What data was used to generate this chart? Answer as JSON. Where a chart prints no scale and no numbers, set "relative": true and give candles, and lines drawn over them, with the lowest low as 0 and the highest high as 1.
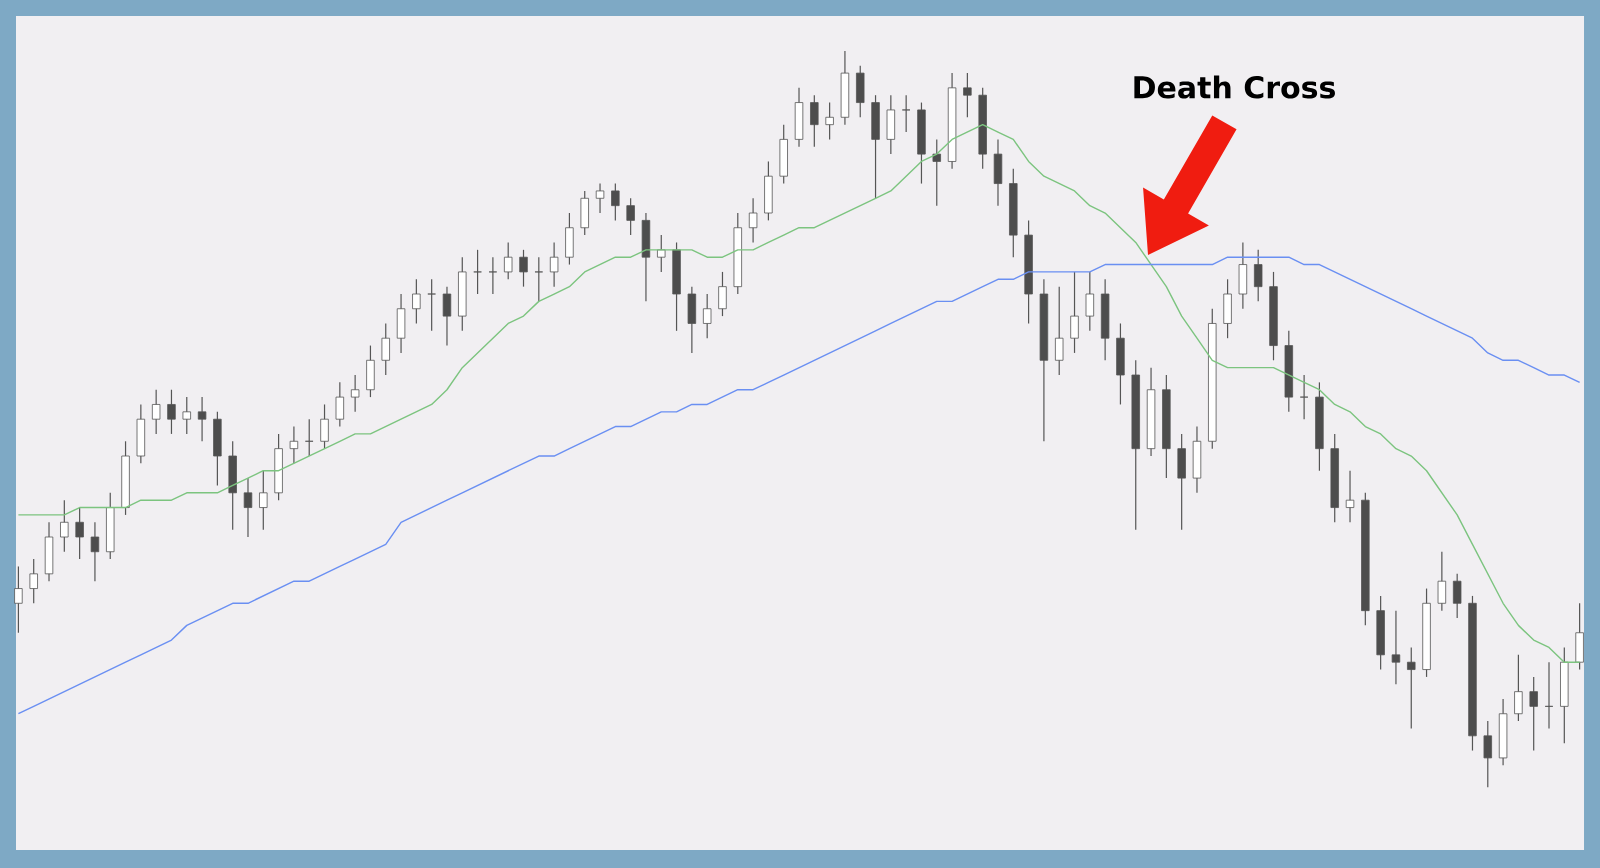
{
  "chart_data": {
    "type": "candlestick",
    "relative": true,
    "categories": [
      null,
      null,
      null,
      null,
      null,
      null,
      null,
      null,
      null,
      null,
      null,
      null,
      null,
      null,
      null,
      null,
      null,
      null,
      null,
      null,
      null,
      null,
      null,
      null,
      null,
      null,
      null,
      null,
      null,
      null,
      null,
      null,
      null,
      null,
      null,
      null,
      null,
      null,
      null,
      null,
      null,
      null,
      null,
      null,
      null,
      null,
      null,
      null,
      null,
      null,
      null,
      null,
      null,
      null,
      null,
      null,
      null,
      null,
      null,
      null,
      null,
      null,
      null,
      null,
      null,
      null,
      null,
      null,
      null,
      null,
      null,
      null,
      null,
      null,
      null,
      null,
      null,
      null,
      null,
      null,
      null,
      null,
      null,
      null,
      null,
      null,
      null,
      null,
      null,
      null,
      null,
      null,
      null,
      null,
      null,
      null,
      null,
      null,
      null,
      null,
      null,
      null,
      null
    ],
    "ohlc": [
      [
        0.25,
        0.3,
        0.21,
        0.27
      ],
      [
        0.27,
        0.31,
        0.25,
        0.29
      ],
      [
        0.29,
        0.36,
        0.28,
        0.34
      ],
      [
        0.34,
        0.39,
        0.32,
        0.36
      ],
      [
        0.36,
        0.38,
        0.31,
        0.34
      ],
      [
        0.34,
        0.36,
        0.28,
        0.32
      ],
      [
        0.32,
        0.4,
        0.31,
        0.38
      ],
      [
        0.38,
        0.47,
        0.37,
        0.45
      ],
      [
        0.45,
        0.52,
        0.44,
        0.5
      ],
      [
        0.5,
        0.54,
        0.48,
        0.52
      ],
      [
        0.52,
        0.54,
        0.48,
        0.5
      ],
      [
        0.5,
        0.53,
        0.48,
        0.51
      ],
      [
        0.51,
        0.53,
        0.47,
        0.5
      ],
      [
        0.5,
        0.51,
        0.41,
        0.45
      ],
      [
        0.45,
        0.47,
        0.35,
        0.4
      ],
      [
        0.4,
        0.42,
        0.34,
        0.38
      ],
      [
        0.38,
        0.43,
        0.35,
        0.4
      ],
      [
        0.4,
        0.48,
        0.39,
        0.46
      ],
      [
        0.46,
        0.49,
        0.44,
        0.47
      ],
      [
        0.47,
        0.5,
        0.45,
        0.47
      ],
      [
        0.47,
        0.52,
        0.46,
        0.5
      ],
      [
        0.5,
        0.55,
        0.49,
        0.53
      ],
      [
        0.53,
        0.56,
        0.51,
        0.54
      ],
      [
        0.54,
        0.6,
        0.53,
        0.58
      ],
      [
        0.58,
        0.63,
        0.56,
        0.61
      ],
      [
        0.61,
        0.67,
        0.59,
        0.65
      ],
      [
        0.65,
        0.69,
        0.63,
        0.67
      ],
      [
        0.67,
        0.69,
        0.62,
        0.67
      ],
      [
        0.67,
        0.68,
        0.6,
        0.64
      ],
      [
        0.64,
        0.72,
        0.62,
        0.7
      ],
      [
        0.7,
        0.73,
        0.67,
        0.7
      ],
      [
        0.7,
        0.72,
        0.67,
        0.7
      ],
      [
        0.7,
        0.74,
        0.69,
        0.72
      ],
      [
        0.72,
        0.73,
        0.68,
        0.7
      ],
      [
        0.7,
        0.72,
        0.66,
        0.7
      ],
      [
        0.7,
        0.74,
        0.68,
        0.72
      ],
      [
        0.72,
        0.78,
        0.71,
        0.76
      ],
      [
        0.76,
        0.81,
        0.75,
        0.8
      ],
      [
        0.8,
        0.82,
        0.78,
        0.81
      ],
      [
        0.81,
        0.82,
        0.77,
        0.79
      ],
      [
        0.79,
        0.8,
        0.75,
        0.77
      ],
      [
        0.77,
        0.78,
        0.66,
        0.72
      ],
      [
        0.72,
        0.75,
        0.7,
        0.73
      ],
      [
        0.73,
        0.74,
        0.62,
        0.67
      ],
      [
        0.67,
        0.68,
        0.59,
        0.63
      ],
      [
        0.63,
        0.67,
        0.61,
        0.65
      ],
      [
        0.65,
        0.7,
        0.64,
        0.68
      ],
      [
        0.68,
        0.78,
        0.67,
        0.76
      ],
      [
        0.76,
        0.8,
        0.74,
        0.78
      ],
      [
        0.78,
        0.85,
        0.77,
        0.83
      ],
      [
        0.83,
        0.9,
        0.82,
        0.88
      ],
      [
        0.88,
        0.95,
        0.87,
        0.93
      ],
      [
        0.93,
        0.94,
        0.87,
        0.9
      ],
      [
        0.9,
        0.93,
        0.88,
        0.91
      ],
      [
        0.91,
        1.0,
        0.9,
        0.97
      ],
      [
        0.97,
        0.98,
        0.91,
        0.93
      ],
      [
        0.93,
        0.94,
        0.8,
        0.88
      ],
      [
        0.88,
        0.94,
        0.86,
        0.92
      ],
      [
        0.92,
        0.94,
        0.89,
        0.92
      ],
      [
        0.92,
        0.93,
        0.82,
        0.86
      ],
      [
        0.86,
        0.88,
        0.79,
        0.85
      ],
      [
        0.85,
        0.97,
        0.84,
        0.95
      ],
      [
        0.95,
        0.97,
        0.91,
        0.94
      ],
      [
        0.94,
        0.95,
        0.84,
        0.86
      ],
      [
        0.86,
        0.88,
        0.79,
        0.82
      ],
      [
        0.82,
        0.84,
        0.72,
        0.75
      ],
      [
        0.75,
        0.77,
        0.63,
        0.67
      ],
      [
        0.67,
        0.69,
        0.47,
        0.58
      ],
      [
        0.58,
        0.68,
        0.56,
        0.61
      ],
      [
        0.61,
        0.7,
        0.59,
        0.64
      ],
      [
        0.64,
        0.7,
        0.62,
        0.67
      ],
      [
        0.67,
        0.69,
        0.58,
        0.61
      ],
      [
        0.61,
        0.63,
        0.52,
        0.56
      ],
      [
        0.56,
        0.58,
        0.35,
        0.46
      ],
      [
        0.46,
        0.57,
        0.45,
        0.54
      ],
      [
        0.54,
        0.56,
        0.42,
        0.46
      ],
      [
        0.46,
        0.48,
        0.35,
        0.42
      ],
      [
        0.42,
        0.49,
        0.4,
        0.47
      ],
      [
        0.47,
        0.65,
        0.46,
        0.63
      ],
      [
        0.63,
        0.69,
        0.61,
        0.67
      ],
      [
        0.67,
        0.74,
        0.65,
        0.71
      ],
      [
        0.71,
        0.73,
        0.66,
        0.68
      ],
      [
        0.68,
        0.7,
        0.58,
        0.6
      ],
      [
        0.6,
        0.62,
        0.51,
        0.53
      ],
      [
        0.53,
        0.56,
        0.5,
        0.53
      ],
      [
        0.53,
        0.55,
        0.43,
        0.46
      ],
      [
        0.46,
        0.48,
        0.36,
        0.38
      ],
      [
        0.38,
        0.43,
        0.36,
        0.39
      ],
      [
        0.39,
        0.4,
        0.22,
        0.24
      ],
      [
        0.24,
        0.26,
        0.16,
        0.18
      ],
      [
        0.18,
        0.24,
        0.14,
        0.17
      ],
      [
        0.17,
        0.19,
        0.08,
        0.16
      ],
      [
        0.16,
        0.27,
        0.15,
        0.25
      ],
      [
        0.25,
        0.32,
        0.24,
        0.28
      ],
      [
        0.28,
        0.29,
        0.23,
        0.25
      ],
      [
        0.25,
        0.26,
        0.05,
        0.07
      ],
      [
        0.07,
        0.09,
        0.0,
        0.04
      ],
      [
        0.04,
        0.12,
        0.03,
        0.1
      ],
      [
        0.1,
        0.18,
        0.09,
        0.13
      ],
      [
        0.13,
        0.15,
        0.05,
        0.11
      ],
      [
        0.11,
        0.17,
        0.08,
        0.11
      ],
      [
        0.11,
        0.19,
        0.06,
        0.17
      ],
      [
        0.17,
        0.25,
        0.16,
        0.21
      ]
    ],
    "series": [
      {
        "type": "line",
        "color": "#7cc47f",
        "values": [
          0.37,
          0.37,
          0.37,
          0.37,
          0.38,
          0.38,
          0.38,
          0.38,
          0.39,
          0.39,
          0.39,
          0.4,
          0.4,
          0.4,
          0.41,
          0.42,
          0.43,
          0.43,
          0.44,
          0.45,
          0.46,
          0.47,
          0.48,
          0.48,
          0.49,
          0.5,
          0.51,
          0.52,
          0.54,
          0.57,
          0.59,
          0.61,
          0.63,
          0.64,
          0.66,
          0.67,
          0.68,
          0.7,
          0.71,
          0.72,
          0.72,
          0.73,
          0.73,
          0.73,
          0.73,
          0.72,
          0.72,
          0.73,
          0.73,
          0.74,
          0.75,
          0.76,
          0.76,
          0.77,
          0.78,
          0.79,
          0.8,
          0.81,
          0.83,
          0.85,
          0.86,
          0.88,
          0.89,
          0.9,
          0.89,
          0.88,
          0.85,
          0.83,
          0.82,
          0.81,
          0.79,
          0.78,
          0.76,
          0.74,
          0.71,
          0.68,
          0.64,
          0.61,
          0.58,
          0.57,
          0.57,
          0.57,
          0.57,
          0.56,
          0.55,
          0.54,
          0.52,
          0.51,
          0.49,
          0.48,
          0.46,
          0.45,
          0.43,
          0.4,
          0.37,
          0.33,
          0.29,
          0.25,
          0.22,
          0.2,
          0.19,
          0.17,
          0.17
        ]
      },
      {
        "type": "line",
        "color": "#6a8ff2",
        "values": [
          0.1,
          0.11,
          0.12,
          0.13,
          0.14,
          0.15,
          0.16,
          0.17,
          0.18,
          0.19,
          0.2,
          0.22,
          0.23,
          0.24,
          0.25,
          0.25,
          0.26,
          0.27,
          0.28,
          0.28,
          0.29,
          0.3,
          0.31,
          0.32,
          0.33,
          0.36,
          0.37,
          0.38,
          0.39,
          0.4,
          0.41,
          0.42,
          0.43,
          0.44,
          0.45,
          0.45,
          0.46,
          0.47,
          0.48,
          0.49,
          0.49,
          0.5,
          0.51,
          0.51,
          0.52,
          0.52,
          0.53,
          0.54,
          0.54,
          0.55,
          0.56,
          0.57,
          0.58,
          0.59,
          0.6,
          0.61,
          0.62,
          0.63,
          0.64,
          0.65,
          0.66,
          0.66,
          0.67,
          0.68,
          0.69,
          0.69,
          0.7,
          0.7,
          0.7,
          0.7,
          0.7,
          0.71,
          0.71,
          0.71,
          0.71,
          0.71,
          0.71,
          0.71,
          0.71,
          0.72,
          0.72,
          0.72,
          0.72,
          0.72,
          0.71,
          0.71,
          0.7,
          0.69,
          0.68,
          0.67,
          0.66,
          0.65,
          0.64,
          0.63,
          0.62,
          0.61,
          0.59,
          0.58,
          0.58,
          0.57,
          0.56,
          0.56,
          0.55
        ]
      }
    ],
    "annotations": [
      "Death Cross"
    ]
  }
}
